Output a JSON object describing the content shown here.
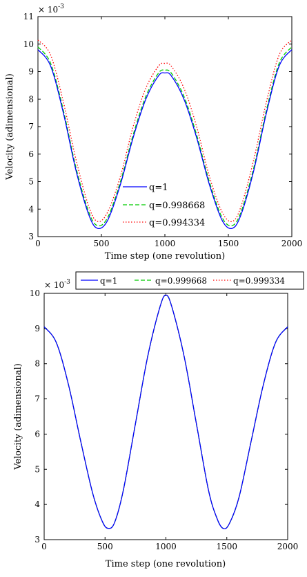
{
  "chart_data": [
    {
      "type": "line",
      "title": "",
      "xlabel": "Time step (one revolution)",
      "ylabel": "Velocity (adimensional)",
      "y_exponent_label": "× 10",
      "y_exponent_power": "-3",
      "xlim": [
        0,
        2000
      ],
      "ylim": [
        3,
        11
      ],
      "xticks": [
        "0",
        "500",
        "1000",
        "1500",
        "2000"
      ],
      "yticks": [
        "3",
        "4",
        "5",
        "6",
        "7",
        "8",
        "9",
        "10",
        "11"
      ],
      "legend_position": "lower-center",
      "x": [
        0,
        100,
        200,
        300,
        400,
        470,
        550,
        650,
        750,
        850,
        950,
        1000,
        1050,
        1150,
        1250,
        1350,
        1450,
        1530,
        1600,
        1700,
        1800,
        1900,
        2000
      ],
      "series": [
        {
          "name": "q=1",
          "color": "#0000ff",
          "dash": "solid",
          "values": [
            9.8,
            9.2,
            7.5,
            5.4,
            3.8,
            3.3,
            3.6,
            4.9,
            6.6,
            8.0,
            8.85,
            8.95,
            8.85,
            8.0,
            6.6,
            4.9,
            3.6,
            3.3,
            3.8,
            5.4,
            7.5,
            9.2,
            9.8
          ]
        },
        {
          "name": "q=0.998668",
          "color": "#00cc00",
          "dash": "dashed",
          "values": [
            9.9,
            9.3,
            7.6,
            5.5,
            3.9,
            3.4,
            3.7,
            5.0,
            6.7,
            8.1,
            8.95,
            9.05,
            8.95,
            8.1,
            6.7,
            5.0,
            3.7,
            3.4,
            3.9,
            5.5,
            7.6,
            9.3,
            9.9
          ]
        },
        {
          "name": "q=0.994334",
          "color": "#ff0000",
          "dash": "dotted",
          "values": [
            10.15,
            9.6,
            7.9,
            5.8,
            4.1,
            3.55,
            3.9,
            5.2,
            7.0,
            8.4,
            9.2,
            9.3,
            9.2,
            8.4,
            7.0,
            5.2,
            3.9,
            3.55,
            4.1,
            5.8,
            7.9,
            9.6,
            10.15
          ]
        }
      ]
    },
    {
      "type": "line",
      "title": "",
      "xlabel": "Time step (one revolution)",
      "ylabel": "Velocity (adimensional)",
      "y_exponent_label": "× 10",
      "y_exponent_power": "-3",
      "xlim": [
        0,
        2000
      ],
      "ylim": [
        3,
        10
      ],
      "xticks": [
        "0",
        "500",
        "1000",
        "1500",
        "2000"
      ],
      "yticks": [
        "3",
        "4",
        "5",
        "6",
        "7",
        "8",
        "9",
        "10"
      ],
      "legend_position": "top (horizontal)",
      "x": [
        0,
        100,
        200,
        300,
        400,
        480,
        530,
        580,
        650,
        750,
        850,
        950,
        1000,
        1050,
        1150,
        1250,
        1350,
        1420,
        1470,
        1520,
        1600,
        1700,
        1800,
        1900,
        2000
      ],
      "series": [
        {
          "name": "q=1",
          "color": "#0000ff",
          "dash": "solid",
          "values": [
            9.05,
            8.6,
            7.4,
            5.8,
            4.3,
            3.5,
            3.32,
            3.5,
            4.4,
            6.3,
            8.2,
            9.6,
            9.95,
            9.6,
            8.2,
            6.3,
            4.4,
            3.6,
            3.32,
            3.45,
            4.2,
            5.8,
            7.4,
            8.6,
            9.05
          ]
        },
        {
          "name": "q=0.999668",
          "color": "#00cc00",
          "dash": "dashed",
          "values": [
            9.05,
            8.6,
            7.4,
            5.8,
            4.3,
            3.5,
            3.32,
            3.5,
            4.4,
            6.3,
            8.2,
            9.6,
            9.95,
            9.6,
            8.2,
            6.3,
            4.4,
            3.6,
            3.32,
            3.45,
            4.2,
            5.8,
            7.4,
            8.6,
            9.05
          ]
        },
        {
          "name": "q=0.999334",
          "color": "#ff0000",
          "dash": "dotted",
          "values": [
            9.05,
            8.6,
            7.4,
            5.8,
            4.3,
            3.5,
            3.32,
            3.5,
            4.4,
            6.3,
            8.2,
            9.6,
            9.95,
            9.6,
            8.2,
            6.3,
            4.4,
            3.6,
            3.32,
            3.45,
            4.2,
            5.8,
            7.4,
            8.6,
            9.05
          ]
        }
      ]
    }
  ]
}
